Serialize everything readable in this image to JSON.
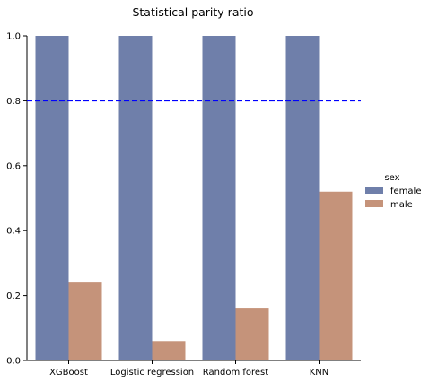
{
  "chart_data": {
    "type": "bar",
    "title": "Statistical parity ratio",
    "xlabel": "",
    "ylabel": "",
    "categories": [
      "XGBoost",
      "Logistic regression",
      "Random forest",
      "KNN"
    ],
    "series": [
      {
        "name": "female",
        "values": [
          1.0,
          1.0,
          1.0,
          1.0
        ],
        "color": "#6f7faa"
      },
      {
        "name": "male",
        "values": [
          0.24,
          0.06,
          0.16,
          0.52
        ],
        "color": "#c5937a"
      }
    ],
    "ylim": [
      0,
      1.0
    ],
    "yticks": [
      "0.0",
      "0.2",
      "0.4",
      "0.6",
      "0.8",
      "1.0"
    ],
    "reference_line": {
      "value": 0.8,
      "color": "#0000ff",
      "style": "dashed"
    },
    "legend": {
      "title": "sex",
      "placement": "right"
    },
    "grid": false
  }
}
